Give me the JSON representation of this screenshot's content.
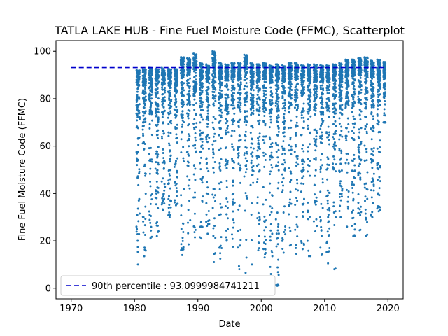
{
  "chart_data": {
    "type": "scatter",
    "title": "TATLA LAKE HUB - Fine Fuel Moisture Code (FFMC), Scatterplot",
    "xlabel": "Date",
    "ylabel": "Fine Fuel Moisture Code (FFMC)",
    "xlim": [
      1967.6,
      2022.4
    ],
    "ylim": [
      -4.5,
      104.5
    ],
    "xticks": [
      1970,
      1980,
      1990,
      2000,
      2010,
      2020
    ],
    "yticks": [
      0,
      20,
      40,
      60,
      80,
      100
    ],
    "grid": false,
    "legend_position": "lower-left",
    "point_color": "#1f77b4",
    "series": [
      {
        "name": "FFMC",
        "kind": "scatter",
        "data_range": {
          "x_start": 1980.3,
          "x_end": 2019.6
        },
        "seasons": [
          {
            "year": 1980,
            "max": 92.0,
            "min": 10.0
          },
          {
            "year": 1981,
            "max": 92.5,
            "min": 13.5
          },
          {
            "year": 1982,
            "max": 93.0,
            "min": 21.0
          },
          {
            "year": 1983,
            "max": 92.5,
            "min": 22.0
          },
          {
            "year": 1984,
            "max": 93.0,
            "min": 33.0
          },
          {
            "year": 1985,
            "max": 92.5,
            "min": 30.0
          },
          {
            "year": 1986,
            "max": 92.5,
            "min": 35.0
          },
          {
            "year": 1987,
            "max": 97.5,
            "min": 14.0
          },
          {
            "year": 1988,
            "max": 97.0,
            "min": 18.5
          },
          {
            "year": 1989,
            "max": 99.0,
            "min": 21.5
          },
          {
            "year": 1990,
            "max": 95.0,
            "min": 21.0
          },
          {
            "year": 1991,
            "max": 94.5,
            "min": 23.0
          },
          {
            "year": 1992,
            "max": 100.0,
            "min": 11.0
          },
          {
            "year": 1993,
            "max": 95.0,
            "min": 12.5
          },
          {
            "year": 1994,
            "max": 94.5,
            "min": 20.0
          },
          {
            "year": 1995,
            "max": 95.0,
            "min": 17.5
          },
          {
            "year": 1996,
            "max": 95.0,
            "min": 8.0
          },
          {
            "year": 1997,
            "max": 98.5,
            "min": 6.5
          },
          {
            "year": 1998,
            "max": 95.0,
            "min": 10.0
          },
          {
            "year": 1999,
            "max": 94.5,
            "min": 16.0
          },
          {
            "year": 2000,
            "max": 95.0,
            "min": 13.0
          },
          {
            "year": 2001,
            "max": 94.0,
            "min": 6.0
          },
          {
            "year": 2002,
            "max": 94.5,
            "min": 1.0
          },
          {
            "year": 2003,
            "max": 94.0,
            "min": 15.0
          },
          {
            "year": 2004,
            "max": 95.0,
            "min": 18.0
          },
          {
            "year": 2005,
            "max": 95.0,
            "min": 14.5
          },
          {
            "year": 2006,
            "max": 94.0,
            "min": 16.5
          },
          {
            "year": 2007,
            "max": 94.5,
            "min": 13.5
          },
          {
            "year": 2008,
            "max": 94.5,
            "min": 24.0
          },
          {
            "year": 2009,
            "max": 94.0,
            "min": 14.0
          },
          {
            "year": 2010,
            "max": 94.0,
            "min": 10.5
          },
          {
            "year": 2011,
            "max": 94.5,
            "min": 8.0
          },
          {
            "year": 2012,
            "max": 95.0,
            "min": 30.0
          },
          {
            "year": 2013,
            "max": 96.5,
            "min": 26.0
          },
          {
            "year": 2014,
            "max": 96.5,
            "min": 22.0
          },
          {
            "year": 2015,
            "max": 97.0,
            "min": 24.5
          },
          {
            "year": 2016,
            "max": 97.5,
            "min": 22.0
          },
          {
            "year": 2017,
            "max": 96.0,
            "min": 30.0
          },
          {
            "year": 2018,
            "max": 96.5,
            "min": 32.5
          },
          {
            "year": 2019,
            "max": 95.5,
            "min": 70.0
          }
        ]
      },
      {
        "name": "90th percentile : 93.0999984741211",
        "kind": "hline",
        "y": 93.0999984741211,
        "x_start": 1970,
        "x_end": 2019.6,
        "color": "#0000cc",
        "style": "dashed"
      }
    ]
  }
}
